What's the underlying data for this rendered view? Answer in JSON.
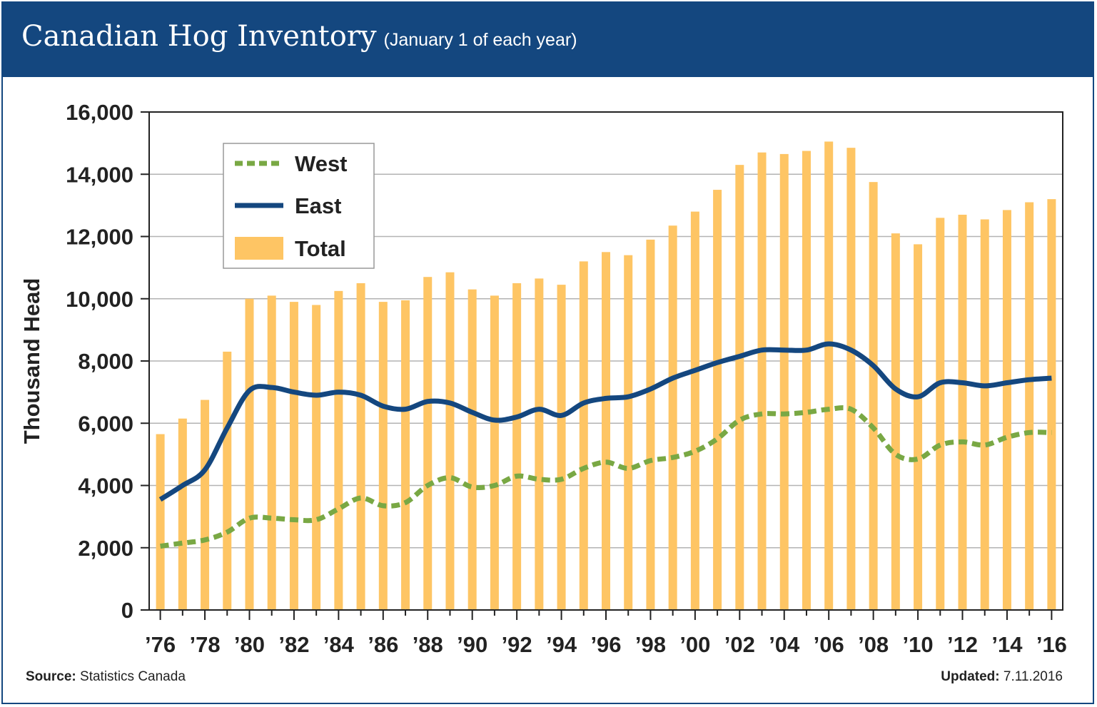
{
  "header": {
    "title": "Canadian Hog Inventory",
    "subtitle": "(January 1 of each year)"
  },
  "footer": {
    "source_label": "Source:",
    "source_value": "Statistics Canada",
    "updated_label": "Updated:",
    "updated_value": "7.11.2016"
  },
  "colors": {
    "header_bg": "#14477f",
    "total": "#fec564",
    "east": "#14477f",
    "west": "#79a844"
  },
  "chart_data": {
    "type": "bar",
    "title": "Canadian Hog Inventory",
    "subtitle": "(January 1 of each year)",
    "xlabel": "",
    "ylabel": "Thousand Head",
    "ylim": [
      0,
      16000
    ],
    "yticks": [
      0,
      2000,
      4000,
      6000,
      8000,
      10000,
      12000,
      14000,
      16000
    ],
    "ytick_labels": [
      "0",
      "2,000",
      "4,000",
      "6,000",
      "8,000",
      "10,000",
      "12,000",
      "14,000",
      "16,000"
    ],
    "categories": [
      1976,
      1977,
      1978,
      1979,
      1980,
      1981,
      1982,
      1983,
      1984,
      1985,
      1986,
      1987,
      1988,
      1989,
      1990,
      1991,
      1992,
      1993,
      1994,
      1995,
      1996,
      1997,
      1998,
      1999,
      2000,
      2001,
      2002,
      2003,
      2004,
      2005,
      2006,
      2007,
      2008,
      2009,
      2010,
      2011,
      2012,
      2013,
      2014,
      2015,
      2016
    ],
    "xtick_labels": [
      "’76",
      "’78",
      "’80",
      "’82",
      "’84",
      "’86",
      "’88",
      "’90",
      "’92",
      "’94",
      "’96",
      "’98",
      "’00",
      "’02",
      "’04",
      "’06",
      "’08",
      "’10",
      "’12",
      "’14",
      "’16"
    ],
    "grid": true,
    "legend_position": "top-left",
    "series": [
      {
        "name": "West",
        "type": "line",
        "style": "dashed",
        "values": [
          2050,
          2150,
          2250,
          2500,
          2950,
          2950,
          2900,
          2900,
          3250,
          3600,
          3350,
          3450,
          4000,
          4250,
          3950,
          4000,
          4300,
          4200,
          4200,
          4550,
          4750,
          4550,
          4800,
          4900,
          5100,
          5500,
          6100,
          6300,
          6300,
          6350,
          6450,
          6450,
          5850,
          5000,
          4850,
          5300,
          5400,
          5300,
          5550,
          5700,
          5700
        ]
      },
      {
        "name": "East",
        "type": "line",
        "style": "solid",
        "values": [
          3550,
          4000,
          4500,
          5850,
          7050,
          7150,
          7000,
          6900,
          7000,
          6900,
          6550,
          6450,
          6700,
          6650,
          6350,
          6100,
          6200,
          6450,
          6250,
          6650,
          6800,
          6850,
          7100,
          7450,
          7700,
          7950,
          8150,
          8350,
          8350,
          8350,
          8550,
          8350,
          7850,
          7100,
          6850,
          7300,
          7300,
          7200,
          7300,
          7400,
          7450
        ]
      },
      {
        "name": "Total",
        "type": "bar",
        "values": [
          5650,
          6150,
          6750,
          8300,
          10000,
          10100,
          9900,
          9800,
          10250,
          10500,
          9900,
          9950,
          10700,
          10850,
          10300,
          10100,
          10500,
          10650,
          10450,
          11200,
          11500,
          11400,
          11900,
          12350,
          12800,
          13500,
          14300,
          14700,
          14650,
          14750,
          15050,
          14850,
          13750,
          12100,
          11750,
          12600,
          12700,
          12550,
          12850,
          13100,
          13200
        ]
      }
    ]
  }
}
